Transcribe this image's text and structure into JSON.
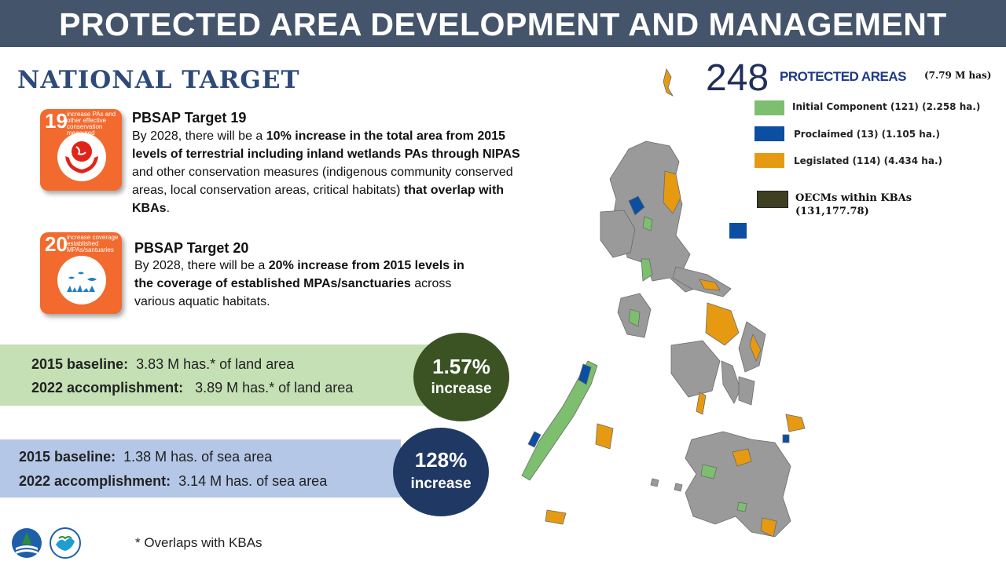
{
  "header": {
    "title": "PROTECTED AREA DEVELOPMENT AND MANAGEMENT"
  },
  "national_target": "NATIONAL TARGET",
  "targets": [
    {
      "icon_number": "19",
      "icon_caption": "increase PAs and other effective conservation measured",
      "heading": "PBSAP Target 19",
      "body_parts": [
        {
          "text": "By 2028, there will be a ",
          "bold": false
        },
        {
          "text": "10% increase in the total area from 2015 levels of terrestrial including inland wetlands PAs through NIPAS",
          "bold": true
        },
        {
          "text": " and other conservation measures (indigenous community conserved areas, local conservation areas, critical habitats) ",
          "bold": false
        },
        {
          "text": "that overlap with KBAs",
          "bold": true
        },
        {
          "text": ".",
          "bold": false
        }
      ]
    },
    {
      "icon_number": "20",
      "icon_caption": "increase coverage established MPAs/santuaries",
      "heading": "PBSAP Target 20",
      "body_parts": [
        {
          "text": "By 2028, there will be a ",
          "bold": false
        },
        {
          "text": "20% increase from 2015 levels in the coverage of established MPAs/sanctuaries",
          "bold": true
        },
        {
          "text": " across various aquatic habitats.",
          "bold": false
        }
      ]
    }
  ],
  "land": {
    "baseline_label": "2015 baseline:",
    "baseline_value": "3.83 M has.* of land area",
    "accomp_label": "2022 accomplishment:",
    "accomp_value": "3.89 M has.* of land area",
    "percent": "1.57%",
    "percent_label": "increase",
    "band_color": "#c5e0b4",
    "circle_color": "#3b5323"
  },
  "sea": {
    "baseline_label": "2015 baseline:",
    "baseline_value": "1.38 M has. of sea area",
    "accomp_label": "2022 accomplishment:",
    "accomp_value": "3.14 M has. of sea area",
    "percent": "128%",
    "percent_label": "increase",
    "band_color": "#b4c7e7",
    "circle_color": "#203864"
  },
  "map_panel": {
    "count": "248",
    "count_label": "PROTECTED AREAS",
    "count_sub": "(7.79 M has)",
    "legend": [
      {
        "label": "Initial Component (121) (2.258 ha.)",
        "color": "#7dbf6e"
      },
      {
        "label": "Proclaimed (13) (1.105 ha.)",
        "color": "#0b4ea2"
      },
      {
        "label": "Legislated (114) (4.434 ha.)",
        "color": "#e69a12"
      }
    ],
    "oecm_line1": "OECMs within KBAs",
    "oecm_line2": "(131,177.78)",
    "oecm_color": "#3f3f22"
  },
  "footnote": "* Overlaps with KBAs",
  "logos": [
    "denr-logo",
    "bmb-logo"
  ]
}
